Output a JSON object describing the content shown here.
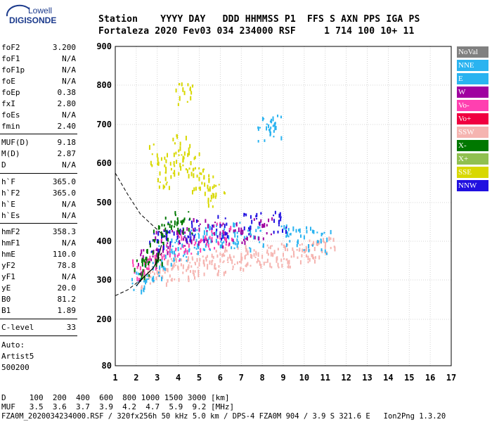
{
  "logo": {
    "brand": "Lowell",
    "product": "DIGISONDE"
  },
  "header": {
    "line1": "Station    YYYY DAY   DDD HHMMSS P1  FFS S AXN PPS IGA PS",
    "line2": "Fortaleza 2020 Fev03 034 234000 RSF     1 714 100 10+ 11"
  },
  "params": [
    {
      "name": "foF2",
      "value": "3.200"
    },
    {
      "name": "foF1",
      "value": "N/A"
    },
    {
      "name": "foF1p",
      "value": "N/A"
    },
    {
      "name": "foE",
      "value": "N/A"
    },
    {
      "name": "foEp",
      "value": "0.38"
    },
    {
      "name": "fxI",
      "value": "2.80"
    },
    {
      "name": "foEs",
      "value": "N/A"
    },
    {
      "name": "fmin",
      "value": "2.40"
    },
    {
      "name": "MUF(D)",
      "value": "9.18"
    },
    {
      "name": "M(D)",
      "value": "2.87"
    },
    {
      "name": "D",
      "value": "N/A"
    },
    {
      "name": "h`F",
      "value": "365.0"
    },
    {
      "name": "h`F2",
      "value": "365.0"
    },
    {
      "name": "h`E",
      "value": "N/A"
    },
    {
      "name": "h`Es",
      "value": "N/A"
    },
    {
      "name": "hmF2",
      "value": "358.3"
    },
    {
      "name": "hmF1",
      "value": "N/A"
    },
    {
      "name": "hmE",
      "value": "110.0"
    },
    {
      "name": "yF2",
      "value": "78.8"
    },
    {
      "name": "yF1",
      "value": "N/A"
    },
    {
      "name": "yE",
      "value": "20.0"
    },
    {
      "name": "B0",
      "value": "81.2"
    },
    {
      "name": "B1",
      "value": "1.89"
    },
    {
      "name": "C-level",
      "value": "33"
    }
  ],
  "autoscale": {
    "line1": "Auto:",
    "line2": "Artist5",
    "line3": "500200"
  },
  "legend": [
    {
      "label": "NoVal",
      "color": "#808080"
    },
    {
      "label": "NNE",
      "color": "#2ab3f0"
    },
    {
      "label": "E",
      "color": "#2ab3f0"
    },
    {
      "label": "W",
      "color": "#a000a0"
    },
    {
      "label": "Vo-",
      "color": "#ff40b0"
    },
    {
      "label": "Vo+",
      "color": "#f00040"
    },
    {
      "label": "SSW",
      "color": "#f5b4b0"
    },
    {
      "label": "X-",
      "color": "#007800"
    },
    {
      "label": "X+",
      "color": "#90c050"
    },
    {
      "label": "SSE",
      "color": "#d8d800"
    },
    {
      "label": "NNW",
      "color": "#2010e0"
    }
  ],
  "muf_table": {
    "d_line": "D     100  200  400  600  800 1000 1500 3000 [km]",
    "muf_line": "MUF   3.5  3.6  3.7  3.9  4.2  4.7  5.9  9.2 [MHz]"
  },
  "footer": "FZA0M_2020034234000.RSF / 320fx256h 50 kHz 5.0 km / DPS-4 FZA0M 904 / 3.9 S 321.6 E   Ion2Png 1.3.20",
  "chart_data": {
    "type": "scatter",
    "title": "",
    "xlabel": "",
    "ylabel": "",
    "xlim": [
      1,
      17
    ],
    "ylim": [
      80,
      900
    ],
    "x_ticks": [
      1,
      2,
      3,
      4,
      5,
      6,
      7,
      8,
      9,
      10,
      11,
      12,
      13,
      14,
      15,
      16,
      17
    ],
    "y_ticks": [
      80,
      200,
      300,
      400,
      500,
      600,
      700,
      800,
      900
    ],
    "grid": true,
    "legend_position": "right",
    "series": [
      {
        "name": "SSW",
        "color": "#f5b4b0",
        "points": [
          [
            2.6,
            310
          ],
          [
            3.0,
            320
          ],
          [
            3.5,
            325
          ],
          [
            4.0,
            330
          ],
          [
            4.5,
            335
          ],
          [
            5.0,
            340
          ],
          [
            5.5,
            345
          ],
          [
            6.0,
            350
          ],
          [
            6.5,
            355
          ],
          [
            7.0,
            355
          ],
          [
            7.5,
            360
          ],
          [
            8.0,
            360
          ],
          [
            8.5,
            365
          ],
          [
            9.0,
            365
          ],
          [
            9.5,
            370
          ],
          [
            10.0,
            375
          ],
          [
            10.5,
            380
          ],
          [
            11.0,
            385
          ]
        ]
      },
      {
        "name": "NNE",
        "color": "#2ab3f0",
        "points": [
          [
            2.2,
            300
          ],
          [
            2.8,
            330
          ],
          [
            3.4,
            360
          ],
          [
            4.0,
            380
          ],
          [
            4.6,
            400
          ],
          [
            5.2,
            410
          ],
          [
            5.8,
            420
          ],
          [
            6.4,
            410
          ],
          [
            7.0,
            420
          ],
          [
            7.6,
            410
          ],
          [
            8.2,
            690
          ],
          [
            8.6,
            700
          ],
          [
            9.2,
            420
          ],
          [
            10.0,
            410
          ],
          [
            10.8,
            400
          ]
        ]
      },
      {
        "name": "SSE",
        "color": "#d8d800",
        "points": [
          [
            3.0,
            620
          ],
          [
            3.4,
            560
          ],
          [
            3.8,
            600
          ],
          [
            4.1,
            650
          ],
          [
            4.3,
            780
          ],
          [
            4.6,
            600
          ],
          [
            5.0,
            560
          ],
          [
            5.4,
            540
          ],
          [
            5.8,
            520
          ]
        ]
      },
      {
        "name": "W",
        "color": "#a000a0",
        "points": [
          [
            2.5,
            350
          ],
          [
            3.2,
            400
          ],
          [
            4.0,
            420
          ],
          [
            5.0,
            430
          ],
          [
            6.0,
            420
          ],
          [
            7.0,
            430
          ],
          [
            8.0,
            440
          ]
        ]
      },
      {
        "name": "Vo-",
        "color": "#ff40b0",
        "points": [
          [
            2.2,
            330
          ],
          [
            2.9,
            360
          ],
          [
            3.6,
            380
          ],
          [
            4.4,
            400
          ],
          [
            5.3,
            410
          ],
          [
            6.2,
            420
          ]
        ]
      },
      {
        "name": "NNW",
        "color": "#2010e0",
        "points": [
          [
            3.0,
            400
          ],
          [
            3.8,
            420
          ],
          [
            4.8,
            430
          ],
          [
            6.0,
            440
          ],
          [
            7.5,
            450
          ],
          [
            8.8,
            450
          ]
        ]
      },
      {
        "name": "X-",
        "color": "#007800",
        "points": [
          [
            2.3,
            340
          ],
          [
            2.8,
            370
          ],
          [
            3.2,
            420
          ],
          [
            3.6,
            440
          ],
          [
            4.2,
            450
          ]
        ]
      }
    ],
    "profile": {
      "x": [
        2.0,
        2.4,
        2.8,
        3.0,
        3.2
      ],
      "y": [
        285,
        310,
        330,
        350,
        390
      ]
    },
    "dashed_curves": [
      {
        "x": [
          1.0,
          1.6,
          2.2,
          2.8,
          3.2
        ],
        "y": [
          575,
          520,
          470,
          440,
          420
        ]
      },
      {
        "x": [
          1.0,
          1.6,
          2.2,
          2.8,
          3.2
        ],
        "y": [
          260,
          275,
          300,
          330,
          370
        ]
      }
    ]
  }
}
